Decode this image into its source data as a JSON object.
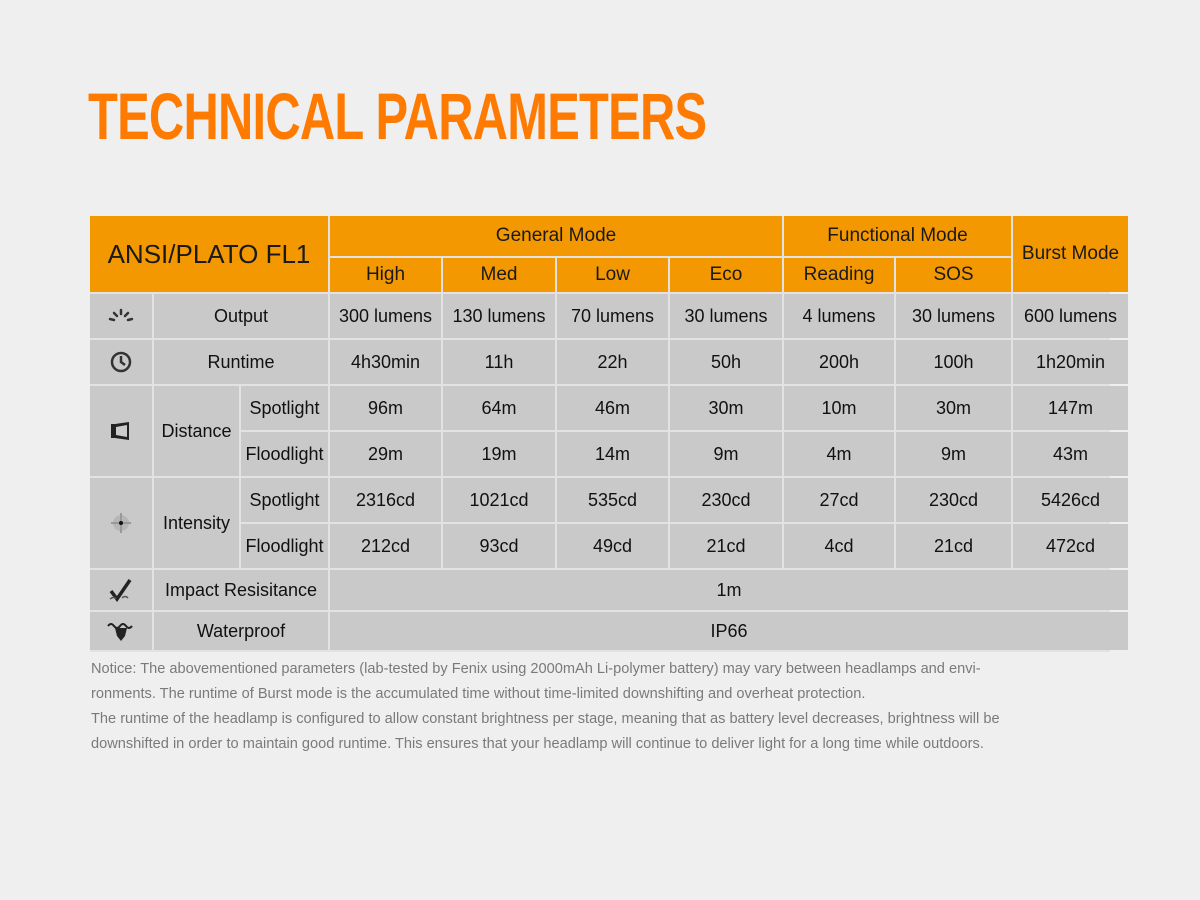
{
  "title": "TECHNICAL PARAMETERS",
  "colors": {
    "title": "#ff7a00",
    "header": "#f39800",
    "cell": "#c9c9c9",
    "background": "#efefef"
  },
  "table": {
    "standard": "ANSI/PLATO FL1",
    "groups": {
      "general": "General Mode",
      "functional": "Functional Mode",
      "burst": "Burst Mode"
    },
    "modes": [
      "High",
      "Med",
      "Low",
      "Eco",
      "Reading",
      "SOS"
    ],
    "rows": {
      "output": {
        "icon": "light-rays-icon",
        "label": "Output",
        "values": [
          "300 lumens",
          "130 lumens",
          "70 lumens",
          "30 lumens",
          "4 lumens",
          "30 lumens",
          "600 lumens"
        ]
      },
      "runtime": {
        "icon": "clock-icon",
        "label": "Runtime",
        "values": [
          "4h30min",
          "11h",
          "22h",
          "50h",
          "200h",
          "100h",
          "1h20min"
        ]
      },
      "distance": {
        "icon": "beam-distance-icon",
        "label": "Distance",
        "spotlight": {
          "label": "Spotlight",
          "values": [
            "96m",
            "64m",
            "46m",
            "30m",
            "10m",
            "30m",
            "147m"
          ]
        },
        "floodlight": {
          "label": "Floodlight",
          "values": [
            "29m",
            "19m",
            "14m",
            "9m",
            "4m",
            "9m",
            "43m"
          ]
        }
      },
      "intensity": {
        "icon": "target-icon",
        "label": "Intensity",
        "spotlight": {
          "label": "Spotlight",
          "values": [
            "2316cd",
            "1021cd",
            "535cd",
            "230cd",
            "27cd",
            "230cd",
            "5426cd"
          ]
        },
        "floodlight": {
          "label": "Floodlight",
          "values": [
            "212cd",
            "93cd",
            "49cd",
            "21cd",
            "4cd",
            "21cd",
            "472cd"
          ]
        }
      },
      "impact": {
        "icon": "impact-check-icon",
        "label": "Impact Resisitance",
        "value": "1m"
      },
      "waterproof": {
        "icon": "waterproof-icon",
        "label": "Waterproof",
        "value": "IP66"
      }
    }
  },
  "notice": [
    "Notice: The abovementioned parameters (lab-tested by Fenix using 2000mAh Li-polymer battery) may vary between headlamps and envi-",
    "ronments. The runtime of Burst mode is the accumulated time without time-limited downshifting and overheat protection.",
    "The runtime of the headlamp is configured to allow constant brightness per stage, meaning that as battery level decreases, brightness will be",
    "downshifted  in order to maintain good runtime. This ensures that your headlamp will continue to deliver light for a long time while outdoors."
  ]
}
